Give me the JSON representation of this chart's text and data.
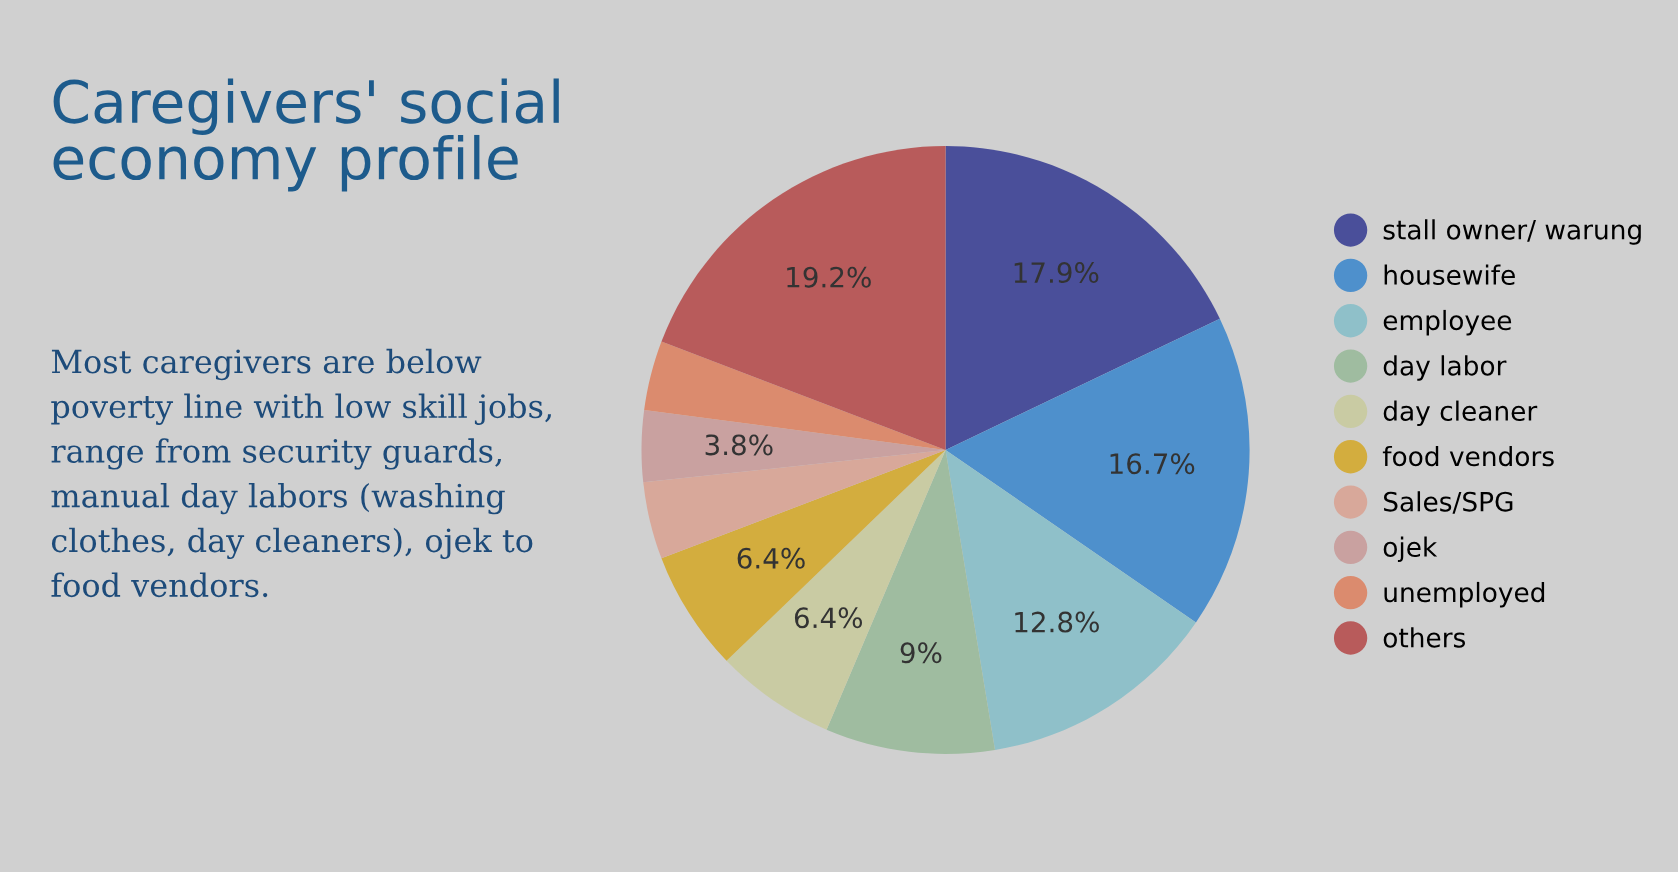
{
  "chart_data": {
    "type": "pie",
    "title": "Caregivers' social economy profile",
    "subtitle": "Most caregivers are below poverty line with low skill jobs, range from security guards, manual day labors (washing clothes, day cleaners), ojek to food vendors.",
    "categories": [
      "stall owner/ warung",
      "housewife",
      "employee",
      "day labor",
      "day cleaner",
      "food vendors",
      "Sales/SPG",
      "ojek",
      "unemployed",
      "others"
    ],
    "values": [
      17.9,
      16.7,
      12.8,
      9,
      6.4,
      6.4,
      4.1,
      3.8,
      3.7,
      19.2
    ],
    "value_labels": [
      "17.9%",
      "16.7%",
      "12.8%",
      "9%",
      "6.4%",
      "6.4%",
      null,
      "3.8%",
      null,
      "19.2%"
    ],
    "colors": [
      "#4a4f9a",
      "#4e90cc",
      "#8fc0c9",
      "#9fbca0",
      "#c9cba3",
      "#d3ad3e",
      "#d8a89a",
      "#c9a1a0",
      "#db8b6e",
      "#b85b5b"
    ],
    "legend": "right"
  }
}
